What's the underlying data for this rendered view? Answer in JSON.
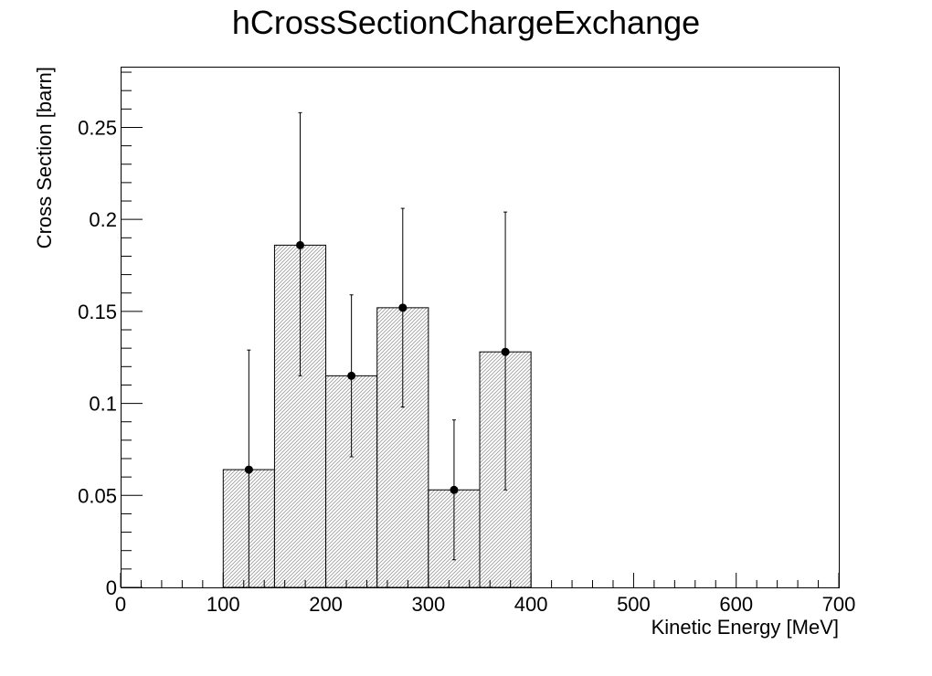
{
  "chart_data": {
    "type": "bar",
    "title": "hCrossSectionChargeExchange",
    "xlabel": "Kinetic Energy [MeV]",
    "ylabel": "Cross Section [barn]",
    "xlim": [
      0,
      700
    ],
    "ylim": [
      0,
      0.283
    ],
    "grid": false,
    "x_ticks": [
      0,
      100,
      200,
      300,
      400,
      500,
      600,
      700
    ],
    "x_tick_labels": [
      "0",
      "100",
      "200",
      "300",
      "400",
      "500",
      "600",
      "700"
    ],
    "y_ticks": [
      0,
      0.05,
      0.1,
      0.15,
      0.2,
      0.25
    ],
    "y_tick_labels": [
      "0",
      "0.05",
      "0.1",
      "0.15",
      "0.2",
      "0.25"
    ],
    "bins": [
      {
        "low": 100,
        "high": 150,
        "value": 0.064,
        "point_x": 125,
        "err_low": 0.0,
        "err_high": 0.129
      },
      {
        "low": 150,
        "high": 200,
        "value": 0.186,
        "point_x": 175,
        "err_low": 0.115,
        "err_high": 0.258
      },
      {
        "low": 200,
        "high": 250,
        "value": 0.115,
        "point_x": 225,
        "err_low": 0.071,
        "err_high": 0.159
      },
      {
        "low": 250,
        "high": 300,
        "value": 0.152,
        "point_x": 275,
        "err_low": 0.098,
        "err_high": 0.206
      },
      {
        "low": 300,
        "high": 350,
        "value": 0.053,
        "point_x": 325,
        "err_low": 0.015,
        "err_high": 0.091
      },
      {
        "low": 350,
        "high": 400,
        "value": 0.128,
        "point_x": 375,
        "err_low": 0.053,
        "err_high": 0.204
      }
    ]
  }
}
